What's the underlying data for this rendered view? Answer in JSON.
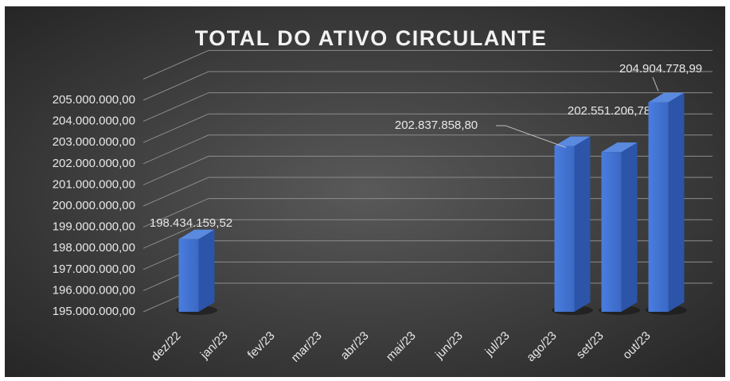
{
  "chart_data": {
    "type": "bar3d",
    "title": "TOTAL DO ATIVO CIRCULANTE",
    "categories": [
      "dez/22",
      "jan/23",
      "fev/23",
      "mar/23",
      "abr/23",
      "mai/23",
      "jun/23",
      "jul/23",
      "ago/23",
      "set/23",
      "out/23"
    ],
    "values": [
      198434159.52,
      null,
      null,
      null,
      null,
      null,
      null,
      null,
      202837858.8,
      202551206.78,
      204904778.99
    ],
    "value_labels": [
      "198.434.159,52",
      null,
      null,
      null,
      null,
      null,
      null,
      null,
      "202.837.858,80",
      "202.551.206,78",
      "204.904.778,99"
    ],
    "color": "#4472c4",
    "ylim": [
      195000000,
      206000000
    ],
    "yticks": [
      {
        "value": 195000000,
        "label": "195.000.000,00"
      },
      {
        "value": 196000000,
        "label": "196.000.000,00"
      },
      {
        "value": 197000000,
        "label": "197.000.000,00"
      },
      {
        "value": 198000000,
        "label": "198.000.000,00"
      },
      {
        "value": 199000000,
        "label": "199.000.000,00"
      },
      {
        "value": 200000000,
        "label": "200.000.000,00"
      },
      {
        "value": 201000000,
        "label": "201.000.000,00"
      },
      {
        "value": 202000000,
        "label": "202.000.000,00"
      },
      {
        "value": 203000000,
        "label": "203.000.000,00"
      },
      {
        "value": 204000000,
        "label": "204.000.000,00"
      },
      {
        "value": 205000000,
        "label": "205.000.000,00"
      }
    ],
    "grid": true
  }
}
